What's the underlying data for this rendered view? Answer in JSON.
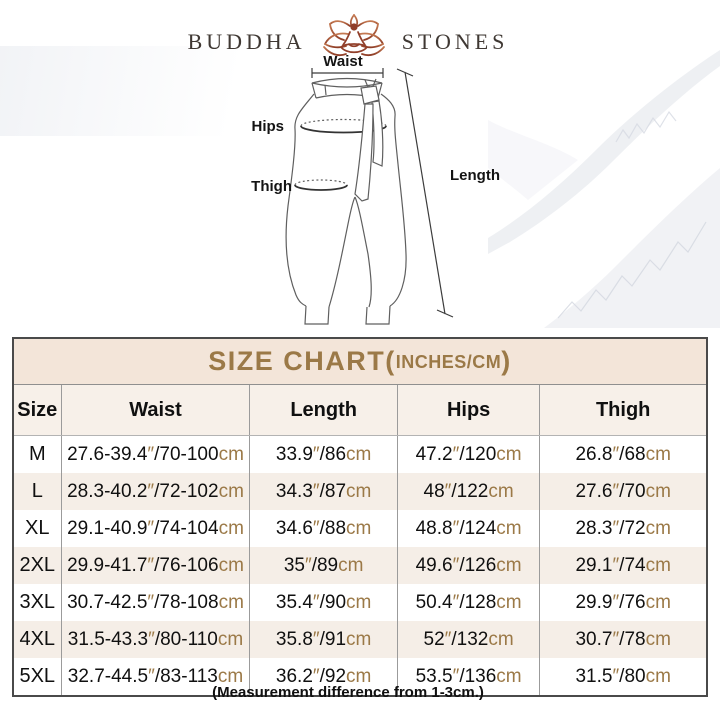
{
  "brand": {
    "left": "BUDDHA",
    "right": "STONES",
    "lotus_color": "#9a4631"
  },
  "diagram": {
    "labels": {
      "waist": "Waist",
      "hips": "Hips",
      "thigh": "Thigh",
      "length": "Length"
    }
  },
  "size_chart": {
    "title_main": "SIZE CHART(",
    "title_sub": "INCHES/CM",
    "title_close": ")",
    "accent_color": "#9b7947",
    "band_bg": "#f3e5d9",
    "columns": [
      "Size",
      "Waist",
      "Length",
      "Hips",
      "Thigh"
    ],
    "rows": [
      {
        "size": "M",
        "waist": "27.6-39.4″/70-100cm",
        "length": "33.9″/86cm",
        "hips": "47.2″/120cm",
        "thigh": "26.8″/68cm"
      },
      {
        "size": "L",
        "waist": "28.3-40.2″/72-102cm",
        "length": "34.3″/87cm",
        "hips": "48″/122cm",
        "thigh": "27.6″/70cm"
      },
      {
        "size": "XL",
        "waist": "29.1-40.9″/74-104cm",
        "length": "34.6″/88cm",
        "hips": "48.8″/124cm",
        "thigh": "28.3″/72cm"
      },
      {
        "size": "2XL",
        "waist": "29.9-41.7″/76-106cm",
        "length": "35″/89cm",
        "hips": "49.6″/126cm",
        "thigh": "29.1″/74cm"
      },
      {
        "size": "3XL",
        "waist": "30.7-42.5″/78-108cm",
        "length": "35.4″/90cm",
        "hips": "50.4″/128cm",
        "thigh": "29.9″/76cm"
      },
      {
        "size": "4XL",
        "waist": "31.5-43.3″/80-110cm",
        "length": "35.8″/91cm",
        "hips": "52″/132cm",
        "thigh": "30.7″/78cm"
      },
      {
        "size": "5XL",
        "waist": "32.7-44.5″/83-113cm",
        "length": "36.2″/92cm",
        "hips": "53.5″/136cm",
        "thigh": "31.5″/80cm"
      }
    ],
    "note": "(Measurement difference from 1-3cm.)"
  },
  "chart_data": {
    "type": "table",
    "title": "SIZE CHART(INCHES/CM)",
    "columns": [
      "Size",
      "Waist",
      "Length",
      "Hips",
      "Thigh"
    ],
    "rows": [
      [
        "M",
        "27.6-39.4″/70-100cm",
        "33.9″/86cm",
        "47.2″/120cm",
        "26.8″/68cm"
      ],
      [
        "L",
        "28.3-40.2″/72-102cm",
        "34.3″/87cm",
        "48″/122cm",
        "27.6″/70cm"
      ],
      [
        "XL",
        "29.1-40.9″/74-104cm",
        "34.6″/88cm",
        "48.8″/124cm",
        "28.3″/72cm"
      ],
      [
        "2XL",
        "29.9-41.7″/76-106cm",
        "35″/89cm",
        "49.6″/126cm",
        "29.1″/74cm"
      ],
      [
        "3XL",
        "30.7-42.5″/78-108cm",
        "35.4″/90cm",
        "50.4″/128cm",
        "29.9″/76cm"
      ],
      [
        "4XL",
        "31.5-43.3″/80-110cm",
        "35.8″/91cm",
        "52″/132cm",
        "30.7″/78cm"
      ],
      [
        "5XL",
        "32.7-44.5″/83-113cm",
        "36.2″/92cm",
        "53.5″/136cm",
        "31.5″/80cm"
      ]
    ],
    "footnote": "(Measurement difference from 1-3cm.)"
  }
}
